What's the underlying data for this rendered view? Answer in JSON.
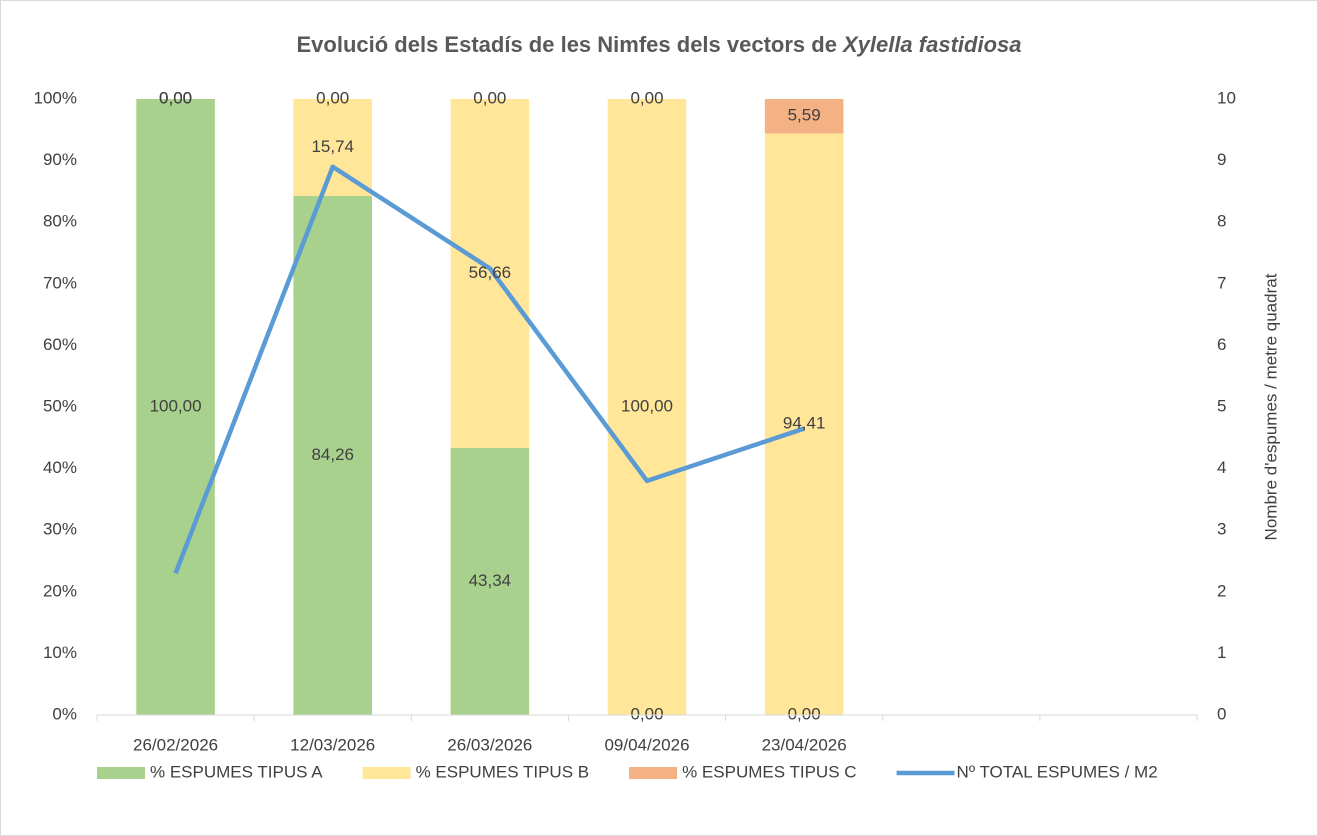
{
  "chart_data": {
    "type": "stacked_bar_line",
    "title": [
      "Evolució dels Estadís de les Nimfes dels vectors de",
      "Xylella fastidiosa"
    ],
    "categories": [
      "26/02/2026",
      "12/03/2026",
      "26/03/2026",
      "09/04/2026",
      "23/04/2026",
      null,
      null
    ],
    "series": [
      {
        "name": "% ESPUMES TIPUS A",
        "color": "#a9d18e",
        "values": [
          100,
          84.26,
          43.34,
          0,
          0,
          null,
          null
        ],
        "value_labels": [
          "100,00",
          "84,26",
          "43,34",
          "0,00",
          "0,00",
          null,
          null
        ]
      },
      {
        "name": "% ESPUMES TIPUS B",
        "color": "#ffe699",
        "values": [
          0,
          15.74,
          56.66,
          100,
          94.41,
          null,
          null
        ],
        "value_labels": [
          "0,00",
          "15,74",
          "56,66",
          "100,00",
          "94,41",
          null,
          null
        ]
      },
      {
        "name": "% ESPUMES TIPUS C",
        "color": "#f4b183",
        "values": [
          0,
          0,
          0,
          0,
          5.59,
          null,
          null
        ],
        "value_labels": [
          "0,00",
          "0,00",
          "0,00",
          "0,00",
          "5,59",
          null,
          null
        ]
      },
      {
        "name": "Nº TOTAL ESPUMES / M2",
        "color": "#5b9bd5",
        "axis": "y2",
        "line": true,
        "values": [
          2.3,
          8.9,
          7.25,
          3.8,
          4.65,
          null,
          null
        ]
      }
    ],
    "ylim": [
      0,
      100
    ],
    "yticks": [
      {
        "value": 0,
        "label": "0%"
      },
      {
        "value": 10,
        "label": "10%"
      },
      {
        "value": 20,
        "label": "20%"
      },
      {
        "value": 30,
        "label": "30%"
      },
      {
        "value": 40,
        "label": "40%"
      },
      {
        "value": 50,
        "label": "50%"
      },
      {
        "value": 60,
        "label": "60%"
      },
      {
        "value": 70,
        "label": "70%"
      },
      {
        "value": 80,
        "label": "80%"
      },
      {
        "value": 90,
        "label": "90%"
      },
      {
        "value": 100,
        "label": "100%"
      }
    ],
    "y2lim": [
      0,
      10
    ],
    "y2ticks": [
      0,
      1,
      2,
      3,
      4,
      5,
      6,
      7,
      8,
      9,
      10
    ],
    "y2label": "Nombre d'espumes / metre quadrat",
    "grid": false,
    "legend": "bottom"
  }
}
